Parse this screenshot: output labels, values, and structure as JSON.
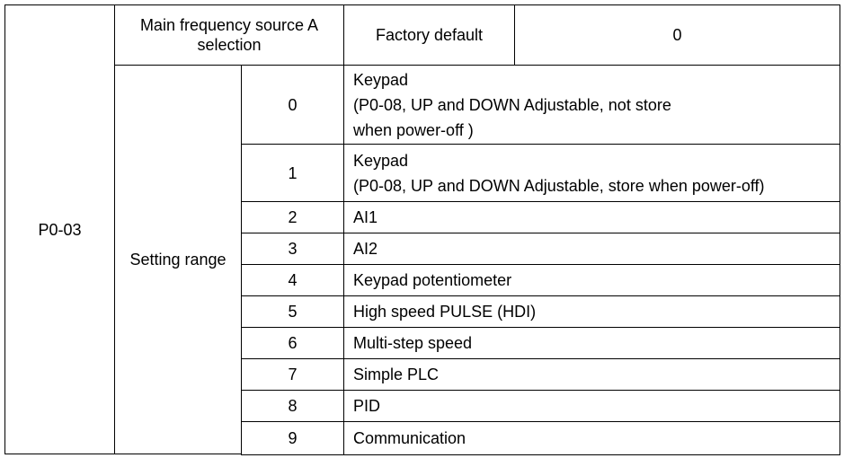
{
  "param_code": "P0-03",
  "param_name": "Main frequency source A selection",
  "factory_default_label": "Factory default",
  "factory_default_value": "0",
  "setting_range_label": "Setting range",
  "options": [
    {
      "value": "0",
      "desc": "Keypad\n(P0-08, UP and DOWN Adjustable, not store\nwhen power-off )"
    },
    {
      "value": "1",
      "desc": "Keypad\n(P0-08, UP and DOWN Adjustable, store when power-off)"
    },
    {
      "value": "2",
      "desc": "AI1"
    },
    {
      "value": "3",
      "desc": "AI2"
    },
    {
      "value": "4",
      "desc": "Keypad potentiometer"
    },
    {
      "value": "5",
      "desc": "High speed PULSE (HDI)"
    },
    {
      "value": "6",
      "desc": "Multi-step speed"
    },
    {
      "value": "7",
      "desc": "Simple PLC"
    },
    {
      "value": "8",
      "desc": "PID"
    },
    {
      "value": "9",
      "desc": "Communication"
    }
  ]
}
